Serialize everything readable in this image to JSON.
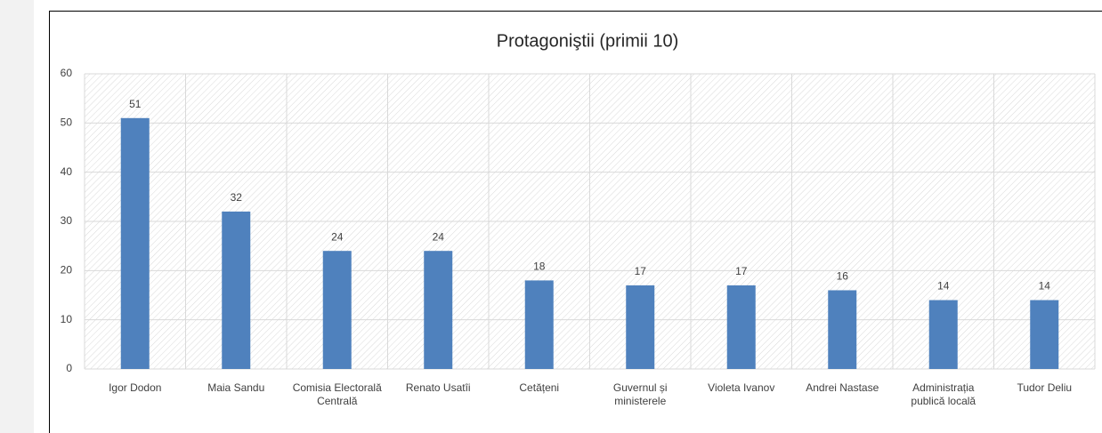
{
  "chart_data": {
    "type": "bar",
    "title": "Protagoniştii (primii 10)",
    "categories": [
      "Igor Dodon",
      "Maia Sandu",
      "Comisia Electorală Centrală",
      "Renato Usatîi",
      "Cetățeni",
      "Guvernul și ministerele",
      "Violeta Ivanov",
      "Andrei Nastase",
      "Administrația publică locală",
      "Tudor Deliu"
    ],
    "values": [
      51,
      32,
      24,
      24,
      18,
      17,
      17,
      16,
      14,
      14
    ],
    "color": "#4f81bd",
    "ylim": [
      0,
      60
    ],
    "yticks": [
      0,
      10,
      20,
      30,
      40,
      50,
      60
    ],
    "grid": true
  }
}
